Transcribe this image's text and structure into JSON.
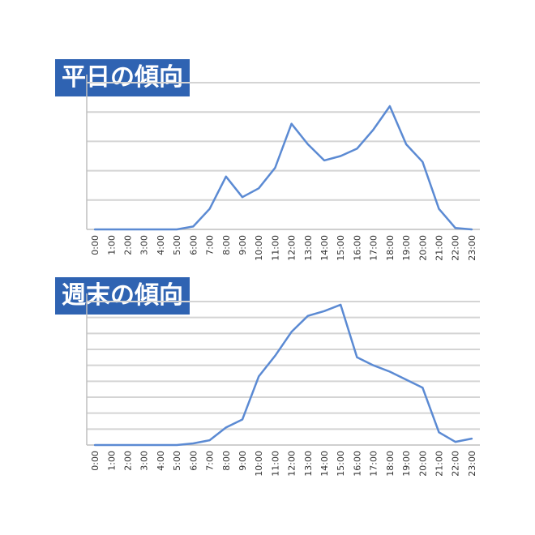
{
  "chart_data": [
    {
      "type": "line",
      "title": "平日の傾向",
      "x": [
        "0:00",
        "1:00",
        "2:00",
        "3:00",
        "4:00",
        "5:00",
        "6:00",
        "7:00",
        "8:00",
        "9:00",
        "10:00",
        "11:00",
        "12:00",
        "13:00",
        "14:00",
        "15:00",
        "16:00",
        "17:00",
        "18:00",
        "19:00",
        "20:00",
        "21:00",
        "22:00",
        "23:00"
      ],
      "series": [
        {
          "values": [
            0,
            0,
            0,
            0,
            0,
            0,
            0.1,
            0.7,
            1.8,
            1.1,
            1.4,
            2.1,
            3.6,
            2.9,
            2.35,
            2.5,
            2.75,
            3.4,
            4.2,
            2.9,
            2.3,
            0.7,
            0.05,
            0
          ]
        }
      ],
      "ylim": [
        0,
        5
      ],
      "grid": true,
      "color": "#5b8ad3",
      "title_bg": "#2f63b2"
    },
    {
      "type": "line",
      "title": "週末の傾向",
      "x": [
        "0:00",
        "1:00",
        "2:00",
        "3:00",
        "4:00",
        "5:00",
        "6:00",
        "7:00",
        "8:00",
        "9:00",
        "10:00",
        "11:00",
        "12:00",
        "13:00",
        "14:00",
        "15:00",
        "16:00",
        "17:00",
        "18:00",
        "19:00",
        "20:00",
        "21:00",
        "22:00",
        "23:00"
      ],
      "series": [
        {
          "values": [
            0,
            0,
            0,
            0,
            0,
            0,
            0.1,
            0.3,
            1.1,
            1.6,
            4.3,
            5.6,
            7.1,
            8.1,
            8.4,
            8.8,
            5.5,
            5.0,
            4.6,
            4.1,
            3.6,
            0.8,
            0.2,
            0.4
          ]
        }
      ],
      "ylim": [
        0,
        9
      ],
      "grid": true,
      "color": "#5b8ad3",
      "title_bg": "#2f63b2"
    }
  ]
}
